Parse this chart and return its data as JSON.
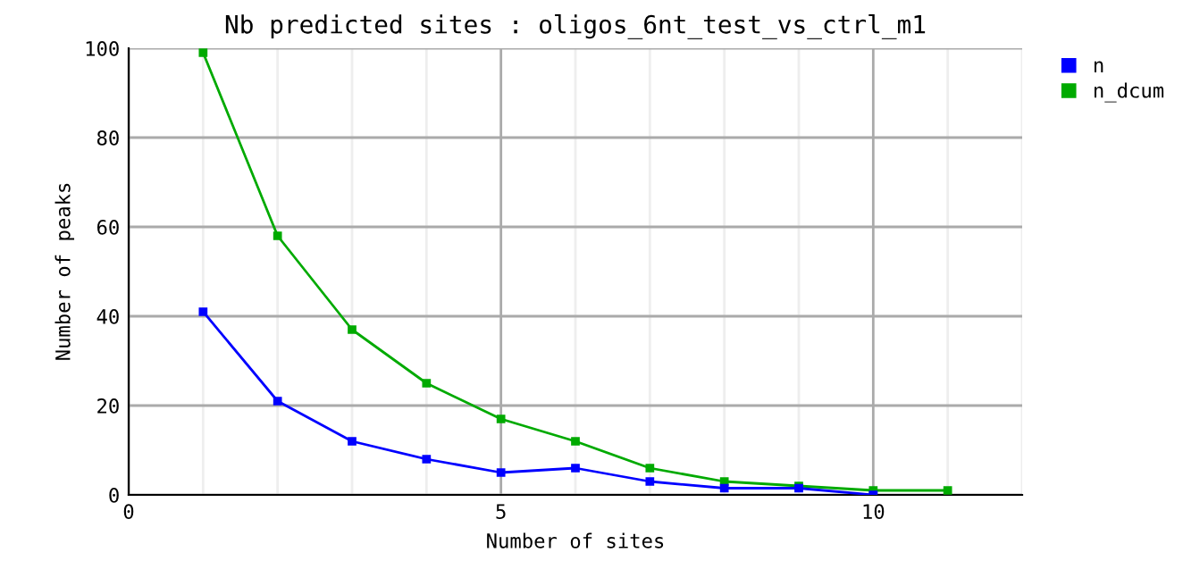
{
  "chart_data": {
    "type": "line",
    "title": "Nb predicted sites : oligos_6nt_test_vs_ctrl_m1",
    "xlabel": "Number of sites",
    "ylabel": "Number of peaks",
    "x": [
      1,
      2,
      3,
      4,
      5,
      6,
      7,
      8,
      9,
      10,
      11
    ],
    "series": [
      {
        "name": "n",
        "color": "#0000ff",
        "values": [
          41,
          21,
          12,
          8,
          5,
          6,
          3,
          1.5,
          1.5,
          0,
          null
        ]
      },
      {
        "name": "n_dcum",
        "color": "#00aa00",
        "values": [
          99,
          58,
          37,
          25,
          17,
          12,
          6,
          3,
          2,
          1,
          1
        ]
      }
    ],
    "xlim": [
      0,
      12
    ],
    "xticks": [
      0,
      {
        "value": 1,
        "label": null
      },
      {
        "value": 2,
        "label": null
      },
      {
        "value": 3,
        "label": null
      },
      {
        "value": 4,
        "label": null
      },
      5,
      {
        "value": 6,
        "label": null
      },
      {
        "value": 7,
        "label": null
      },
      {
        "value": 8,
        "label": null
      },
      {
        "value": 9,
        "label": null
      },
      10,
      {
        "value": 11,
        "label": null
      },
      {
        "value": 12,
        "label": null
      }
    ],
    "ylim": [
      0,
      100
    ],
    "yticks": [
      0,
      20,
      40,
      60,
      80,
      100
    ],
    "grid": true,
    "legend": "top right",
    "marker": "square",
    "line_style": "solid"
  }
}
